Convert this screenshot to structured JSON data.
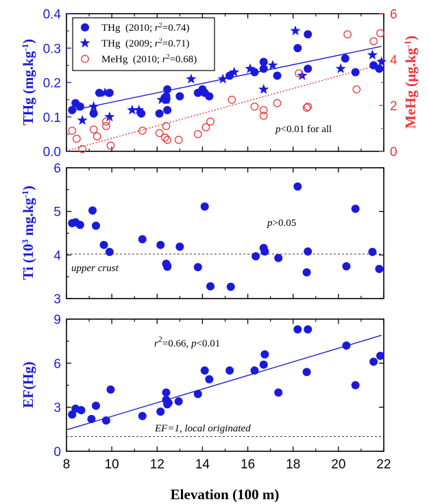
{
  "chart_data": [
    {
      "type": "scatter",
      "ylabel_left": "THg (mg.kg",
      "ylabel_left_sup": "-1",
      "ylabel_left_close": ")",
      "ylabel_right": "MeHg (μg.kg",
      "ylabel_right_sup": "-1",
      "ylabel_right_close": ")",
      "colors": {
        "blue": "#1a1adc",
        "red": "#e8353a"
      },
      "xlim": [
        8,
        22
      ],
      "ylim": [
        0,
        0.4
      ],
      "ylim_right": [
        0,
        6
      ],
      "yticks": [
        "0.0",
        "0.1",
        "0.2",
        "0.3",
        "0.4"
      ],
      "yticks_right": [
        "0",
        "2",
        "4",
        "6"
      ],
      "annotation_p": "p",
      "annotation_rest": "<0.01 for all",
      "legend": [
        {
          "name": "THg",
          "year": "(2010; ",
          "r": "r",
          "sup": "2",
          "val": "=0.74)",
          "marker": "dot",
          "color": "#1a1adc"
        },
        {
          "name": "THg",
          "year": "(2009; ",
          "r": "r",
          "sup": "2",
          "val": "=0.71)",
          "marker": "star",
          "color": "#1a1adc"
        },
        {
          "name": "MeHg",
          "year": "(2010; ",
          "r": "r",
          "sup": "2",
          "val": "=0.68)",
          "marker": "circle",
          "color": "#e8353a"
        }
      ],
      "series": [
        {
          "name": "THg (2010)",
          "marker": "dot",
          "axis": "left",
          "x": [
            8.25,
            8.4,
            8.6,
            9.2,
            9.45,
            9.9,
            11.3,
            12.1,
            12.4,
            12.4,
            12.45,
            12.45,
            13.0,
            13.8,
            14.0,
            14.1,
            14.3,
            15.2,
            16.3,
            16.7,
            16.7,
            17.3,
            18.2,
            18.65,
            18.65,
            20.3,
            20.75,
            21.55,
            21.8
          ],
          "y": [
            0.12,
            0.14,
            0.13,
            0.11,
            0.17,
            0.17,
            0.11,
            0.11,
            0.15,
            0.16,
            0.12,
            0.18,
            0.16,
            0.17,
            0.18,
            0.17,
            0.16,
            0.22,
            0.23,
            0.26,
            0.24,
            0.22,
            0.3,
            0.34,
            0.24,
            0.27,
            0.23,
            0.25,
            0.24
          ]
        },
        {
          "name": "THg (2009)",
          "marker": "star",
          "axis": "left",
          "x": [
            8.7,
            9.2,
            9.7,
            9.9,
            10.9,
            11.2,
            12.2,
            12.4,
            13.5,
            14.9,
            15.4,
            16.1,
            16.7,
            17.1,
            18.1,
            18.4,
            20.1,
            21.5,
            21.9
          ],
          "y": [
            0.09,
            0.13,
            0.17,
            0.1,
            0.12,
            0.12,
            0.15,
            0.15,
            0.21,
            0.21,
            0.23,
            0.24,
            0.18,
            0.25,
            0.35,
            0.22,
            0.24,
            0.28,
            0.26
          ]
        },
        {
          "name": "MeHg (2010)",
          "marker": "circle",
          "axis": "right",
          "x": [
            8.25,
            8.45,
            8.7,
            9.2,
            9.35,
            9.75,
            9.75,
            9.95,
            11.35,
            12.1,
            12.35,
            12.4,
            12.45,
            12.95,
            13.8,
            14.15,
            14.35,
            15.3,
            16.3,
            16.7,
            16.7,
            17.3,
            18.25,
            18.6,
            18.65,
            20.4,
            20.8,
            21.55,
            21.85
          ],
          "y": [
            0.9,
            0.55,
            0.1,
            0.95,
            0.65,
            1.1,
            1.3,
            0.25,
            0.9,
            0.8,
            0.6,
            1.1,
            0.5,
            0.5,
            0.75,
            1.05,
            1.3,
            2.25,
            1.95,
            1.55,
            1.8,
            2.1,
            3.4,
            1.9,
            1.95,
            5.1,
            2.7,
            4.8,
            5.15
          ]
        }
      ],
      "trendlines": [
        {
          "name": "THg fit",
          "axis": "left",
          "style": "solid",
          "color": "#1a1adc",
          "x": [
            8.1,
            21.9
          ],
          "y": [
            0.117,
            0.305
          ]
        },
        {
          "name": "MeHg fit",
          "axis": "right",
          "style": "dotted",
          "color": "#e8353a",
          "x": [
            8.1,
            21.9
          ],
          "y": [
            0.05,
            3.8
          ]
        }
      ]
    },
    {
      "type": "scatter",
      "ylabel": "Ti (10",
      "ylabel_sup": "3",
      "ylabel_rest": " mg.kg",
      "ylabel_sup2": "-1",
      "ylabel_close": ")",
      "xlim": [
        8,
        22
      ],
      "ylim": [
        3,
        6
      ],
      "yticks": [
        "3",
        "4",
        "5",
        "6"
      ],
      "annotation_p": "p",
      "annotation_rest": ">0.05",
      "reference_label": "upper crust",
      "reference_value": 4.02,
      "series": [
        {
          "name": "Ti",
          "marker": "dot",
          "x": [
            8.25,
            8.4,
            8.6,
            9.15,
            9.3,
            9.65,
            9.9,
            11.35,
            12.15,
            12.4,
            12.45,
            12.45,
            13.0,
            13.8,
            14.1,
            14.35,
            15.25,
            16.35,
            16.7,
            16.75,
            17.35,
            18.2,
            18.6,
            18.65,
            20.35,
            20.75,
            21.5,
            21.8
          ],
          "y": [
            4.73,
            4.75,
            4.69,
            5.02,
            4.67,
            4.23,
            4.07,
            4.36,
            4.23,
            3.8,
            3.75,
            3.73,
            4.19,
            3.72,
            5.11,
            3.28,
            3.27,
            3.97,
            4.16,
            4.08,
            3.93,
            5.57,
            3.6,
            4.08,
            3.74,
            5.06,
            4.07,
            3.68
          ]
        }
      ]
    },
    {
      "type": "scatter",
      "ylabel": "EF(Hg)",
      "xlabel": "Elevation (100 m)",
      "xlim": [
        8,
        22
      ],
      "ylim": [
        0,
        9
      ],
      "xticks": [
        "8",
        "10",
        "12",
        "14",
        "16",
        "18",
        "20",
        "22"
      ],
      "yticks": [
        "0",
        "3",
        "6",
        "9"
      ],
      "annotation_r": "r",
      "annotation_sup": "2",
      "annotation_rest": "=0.66, ",
      "annotation_p": "p",
      "annotation_end": "<0.01",
      "reference_label": "EF=1, local originated",
      "reference_value": 1,
      "series": [
        {
          "name": "EF(Hg)",
          "marker": "dot",
          "x": [
            8.25,
            8.4,
            8.65,
            9.1,
            9.3,
            9.75,
            9.95,
            11.35,
            12.15,
            12.4,
            12.4,
            12.45,
            12.5,
            12.95,
            13.8,
            14.1,
            14.3,
            15.2,
            16.3,
            16.7,
            16.75,
            17.35,
            18.2,
            18.6,
            18.65,
            20.35,
            20.75,
            21.55,
            21.85
          ],
          "y": [
            2.5,
            2.9,
            2.8,
            2.2,
            3.1,
            2.1,
            4.2,
            2.4,
            2.7,
            3.5,
            4.0,
            3.2,
            3.3,
            3.4,
            3.9,
            5.5,
            4.9,
            5.5,
            5.5,
            5.9,
            6.6,
            4.0,
            8.3,
            5.4,
            8.3,
            7.2,
            4.5,
            6.1,
            6.5
          ]
        }
      ],
      "trendlines": [
        {
          "name": "EF fit",
          "style": "solid",
          "color": "#1a1adc",
          "x": [
            8.1,
            21.9
          ],
          "y": [
            1.5,
            7.9
          ]
        }
      ]
    }
  ]
}
